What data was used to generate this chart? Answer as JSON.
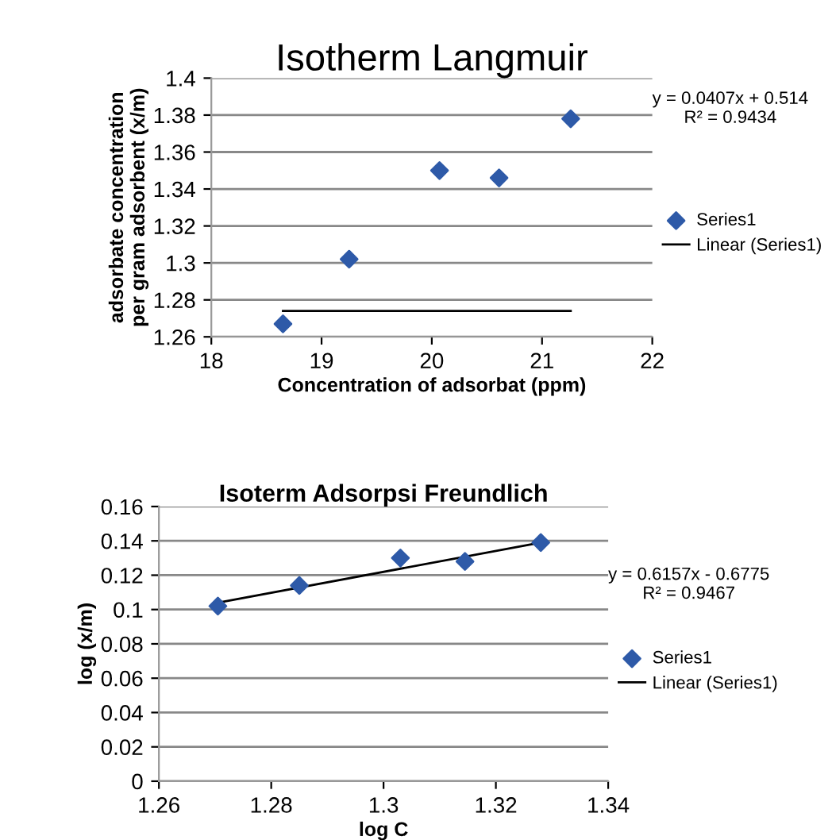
{
  "chart_data": [
    {
      "type": "scatter",
      "title": "Isotherm Langmuir",
      "xlabel": "Concentration of adsorbat (ppm)",
      "ylabel": "adsorbate concentration\nper gram adsorbent (x/m)",
      "xlim": [
        18,
        22
      ],
      "xticks": [
        18,
        19,
        20,
        21,
        22
      ],
      "ylim": [
        1.26,
        1.4
      ],
      "yticks": [
        1.26,
        1.28,
        1.3,
        1.32,
        1.34,
        1.36,
        1.38,
        1.4
      ],
      "grid": "y",
      "legend": "right",
      "marker": "diamond",
      "annotations": [
        "y = 0.0407x + 0.514\nR² = 0.9434"
      ],
      "series": [
        {
          "name": "Series1",
          "color": "#2e5aa8",
          "x": [
            18.65,
            19.25,
            20.07,
            20.61,
            21.26
          ],
          "values": [
            1.267,
            1.302,
            1.35,
            1.346,
            1.378
          ]
        },
        {
          "name": "Linear (Series1)",
          "type": "line",
          "color": "#000000",
          "marker": "none",
          "x": [
            18.65,
            21.26
          ],
          "values": [
            1.274,
            1.274
          ]
        }
      ]
    },
    {
      "type": "scatter",
      "title": "Isoterm Adsorpsi Freundlich",
      "xlabel": "log C",
      "ylabel": "log (x/m)",
      "xlim": [
        1.26,
        1.34
      ],
      "xticks": [
        1.26,
        1.28,
        1.3,
        1.32,
        1.34
      ],
      "ylim": [
        0,
        0.16
      ],
      "yticks": [
        0,
        0.02,
        0.04,
        0.06,
        0.08,
        0.1,
        0.12,
        0.14,
        0.16
      ],
      "grid": "y",
      "legend": "right",
      "marker": "diamond",
      "annotations": [
        "y = 0.6157x - 0.6775\nR² = 0.9467"
      ],
      "series": [
        {
          "name": "Series1",
          "color": "#2e5aa8",
          "x": [
            1.2705,
            1.285,
            1.303,
            1.3145,
            1.328
          ],
          "values": [
            0.102,
            0.114,
            0.13,
            0.128,
            0.139
          ]
        },
        {
          "name": "Linear (Series1)",
          "type": "line",
          "color": "#000000",
          "marker": "none",
          "x": [
            1.2705,
            1.328
          ],
          "values": [
            0.104,
            0.139
          ]
        }
      ]
    }
  ]
}
